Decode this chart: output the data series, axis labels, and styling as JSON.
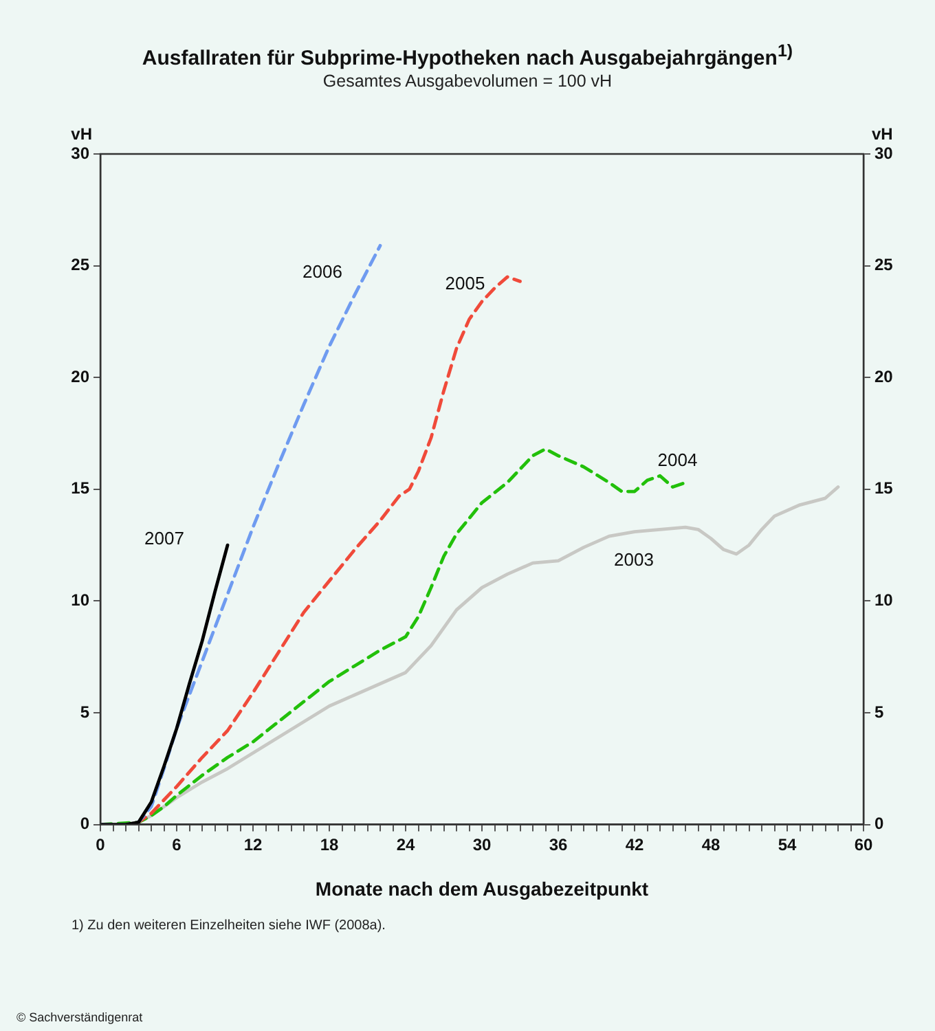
{
  "chart_data": {
    "type": "line",
    "title": "Ausfallraten für Subprime-Hypotheken nach Ausgabejahrgängen$^{1)}$",
    "subtitle": "Gesamtes Ausgabevolumen = 100 vH",
    "xlabel": "Monate nach dem Ausgabezeitpunkt",
    "ylabel": "vH",
    "y2label": "vH",
    "xlim": [
      0,
      60
    ],
    "xticks": [
      0,
      {
        "value": 1,
        "label": null
      },
      {
        "value": 2,
        "label": null
      },
      {
        "value": 3,
        "label": null
      },
      {
        "value": 4,
        "label": null
      },
      {
        "value": 5,
        "label": null
      },
      6,
      {
        "value": 7,
        "label": null
      },
      {
        "value": 8,
        "label": null
      },
      {
        "value": 9,
        "label": null
      },
      {
        "value": 10,
        "label": null
      },
      {
        "value": 11,
        "label": null
      },
      12,
      {
        "value": 13,
        "label": null
      },
      {
        "value": 14,
        "label": null
      },
      {
        "value": 15,
        "label": null
      },
      {
        "value": 16,
        "label": null
      },
      {
        "value": 17,
        "label": null
      },
      18,
      {
        "value": 19,
        "label": null
      },
      {
        "value": 20,
        "label": null
      },
      {
        "value": 21,
        "label": null
      },
      {
        "value": 22,
        "label": null
      },
      {
        "value": 23,
        "label": null
      },
      24,
      {
        "value": 25,
        "label": null
      },
      {
        "value": 26,
        "label": null
      },
      {
        "value": 27,
        "label": null
      },
      {
        "value": 28,
        "label": null
      },
      {
        "value": 29,
        "label": null
      },
      30,
      {
        "value": 31,
        "label": null
      },
      {
        "value": 32,
        "label": null
      },
      {
        "value": 33,
        "label": null
      },
      {
        "value": 34,
        "label": null
      },
      {
        "value": 35,
        "label": null
      },
      36,
      {
        "value": 37,
        "label": null
      },
      {
        "value": 38,
        "label": null
      },
      {
        "value": 39,
        "label": null
      },
      {
        "value": 40,
        "label": null
      },
      {
        "value": 41,
        "label": null
      },
      42,
      {
        "value": 43,
        "label": null
      },
      {
        "value": 44,
        "label": null
      },
      {
        "value": 45,
        "label": null
      },
      {
        "value": 46,
        "label": null
      },
      {
        "value": 47,
        "label": null
      },
      48,
      {
        "value": 49,
        "label": null
      },
      {
        "value": 50,
        "label": null
      },
      {
        "value": 51,
        "label": null
      },
      {
        "value": 52,
        "label": null
      },
      {
        "value": 53,
        "label": null
      },
      54,
      {
        "value": 55,
        "label": null
      },
      {
        "value": 56,
        "label": null
      },
      {
        "value": 57,
        "label": null
      },
      {
        "value": 58,
        "label": null
      },
      {
        "value": 59,
        "label": null
      },
      60
    ],
    "ylim": [
      0,
      30
    ],
    "yticks": [
      0,
      5,
      10,
      15,
      20,
      25,
      30
    ],
    "y2lim": [
      0,
      30
    ],
    "y2ticks": [
      0,
      5,
      10,
      15,
      20,
      25,
      30
    ],
    "grid": false,
    "legend": false,
    "marker": "none",
    "series": [
      {
        "name": "2007",
        "color": "#000000",
        "line_style": "solid",
        "x": [
          0,
          2,
          3,
          4,
          5,
          6,
          7,
          8,
          9,
          10
        ],
        "values": [
          0,
          0,
          0.1,
          1.0,
          2.6,
          4.3,
          6.3,
          8.2,
          10.4,
          12.5
        ]
      },
      {
        "name": "2006",
        "color": "#6f9bf0",
        "line_style": "dashed",
        "x": [
          0,
          2,
          3,
          4,
          5,
          6,
          8,
          10,
          12,
          14,
          16,
          18,
          20,
          22
        ],
        "values": [
          0,
          0,
          0.1,
          0.8,
          2.5,
          4.3,
          7.3,
          10.3,
          13.3,
          16.1,
          18.8,
          21.4,
          23.7,
          25.9
        ]
      },
      {
        "name": "2005",
        "color": "#f04a3a",
        "line_style": "dashed",
        "x": [
          0,
          2,
          3,
          4,
          6,
          8,
          10,
          12,
          14,
          16,
          18,
          20,
          22,
          23.5,
          24.3,
          25,
          26,
          27,
          28,
          29,
          30,
          31,
          32,
          33
        ],
        "values": [
          0,
          0,
          0.1,
          0.5,
          1.7,
          3.0,
          4.2,
          5.9,
          7.7,
          9.5,
          10.9,
          12.3,
          13.6,
          14.7,
          15.0,
          15.8,
          17.3,
          19.4,
          21.3,
          22.6,
          23.4,
          24.0,
          24.5,
          24.3
        ]
      },
      {
        "name": "2004",
        "color": "#22c00a",
        "line_style": "dashed",
        "x": [
          0,
          3,
          4,
          5,
          6,
          8,
          10,
          12,
          14,
          16,
          18,
          20,
          22,
          24,
          25,
          26,
          27,
          28,
          30,
          32,
          34,
          35,
          36,
          38,
          40,
          41,
          42,
          43,
          44,
          45,
          46
        ],
        "values": [
          0,
          0.1,
          0.4,
          0.8,
          1.3,
          2.2,
          3.0,
          3.7,
          4.6,
          5.5,
          6.4,
          7.1,
          7.8,
          8.4,
          9.3,
          10.6,
          12.0,
          13.0,
          14.4,
          15.3,
          16.5,
          16.8,
          16.5,
          16.0,
          15.3,
          14.9,
          14.9,
          15.4,
          15.6,
          15.1,
          15.3
        ]
      },
      {
        "name": "2003",
        "color": "#c8c8c4",
        "line_style": "solid",
        "x": [
          0,
          2,
          3,
          4,
          6,
          8,
          10,
          12,
          14,
          16,
          18,
          20,
          22,
          24,
          26,
          28,
          30,
          32,
          34,
          36,
          38,
          40,
          42,
          44,
          46,
          47,
          48,
          49,
          50,
          51,
          52,
          53,
          55,
          57,
          58
        ],
        "values": [
          0,
          0,
          0.1,
          0.4,
          1.2,
          1.9,
          2.5,
          3.2,
          3.9,
          4.6,
          5.3,
          5.8,
          6.3,
          6.8,
          8.0,
          9.6,
          10.6,
          11.2,
          11.7,
          11.8,
          12.4,
          12.9,
          13.1,
          13.2,
          13.3,
          13.2,
          12.8,
          12.3,
          12.1,
          12.5,
          13.2,
          13.8,
          14.3,
          14.6,
          15.1
        ]
      }
    ],
    "annotations": [
      "1) Zu den weiteren Einzelheiten siehe IWF (2008a).",
      "© Sachverständigenrat"
    ]
  }
}
